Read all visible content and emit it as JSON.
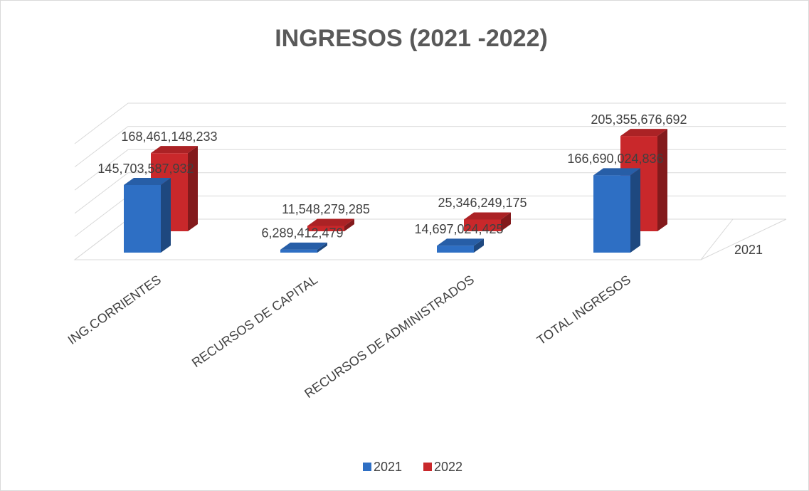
{
  "chart_data": {
    "type": "bar3d",
    "title": "INGRESOS (2021 -2022)",
    "categories": [
      "ING.CORRIENTES",
      "RECURSOS DE CAPITAL",
      "RECURSOS DE ADMINISTRADOS",
      "TOTAL INGRESOS"
    ],
    "series": [
      {
        "name": "2021",
        "color": "#2e6fc4",
        "values": [
          145703587932,
          6289412479,
          14697024425,
          166690024836
        ],
        "value_labels": [
          "145,703,587,932",
          "6,289,412,479",
          "14,697,024,425",
          "166,690,024,836"
        ]
      },
      {
        "name": "2022",
        "color": "#c9282b",
        "values": [
          168461148233,
          11548279285,
          25346249175,
          205355676692
        ],
        "value_labels": [
          "168,461,148,233",
          "11,548,279,285",
          "25,346,249,175",
          "205,355,676,692"
        ]
      }
    ],
    "depth_labels": [
      "2021"
    ],
    "ylim": [
      0,
      250000000000
    ],
    "yticks": [
      0,
      50000000000,
      100000000000,
      150000000000,
      200000000000,
      250000000000
    ],
    "grid": true,
    "legend": "bottom"
  }
}
